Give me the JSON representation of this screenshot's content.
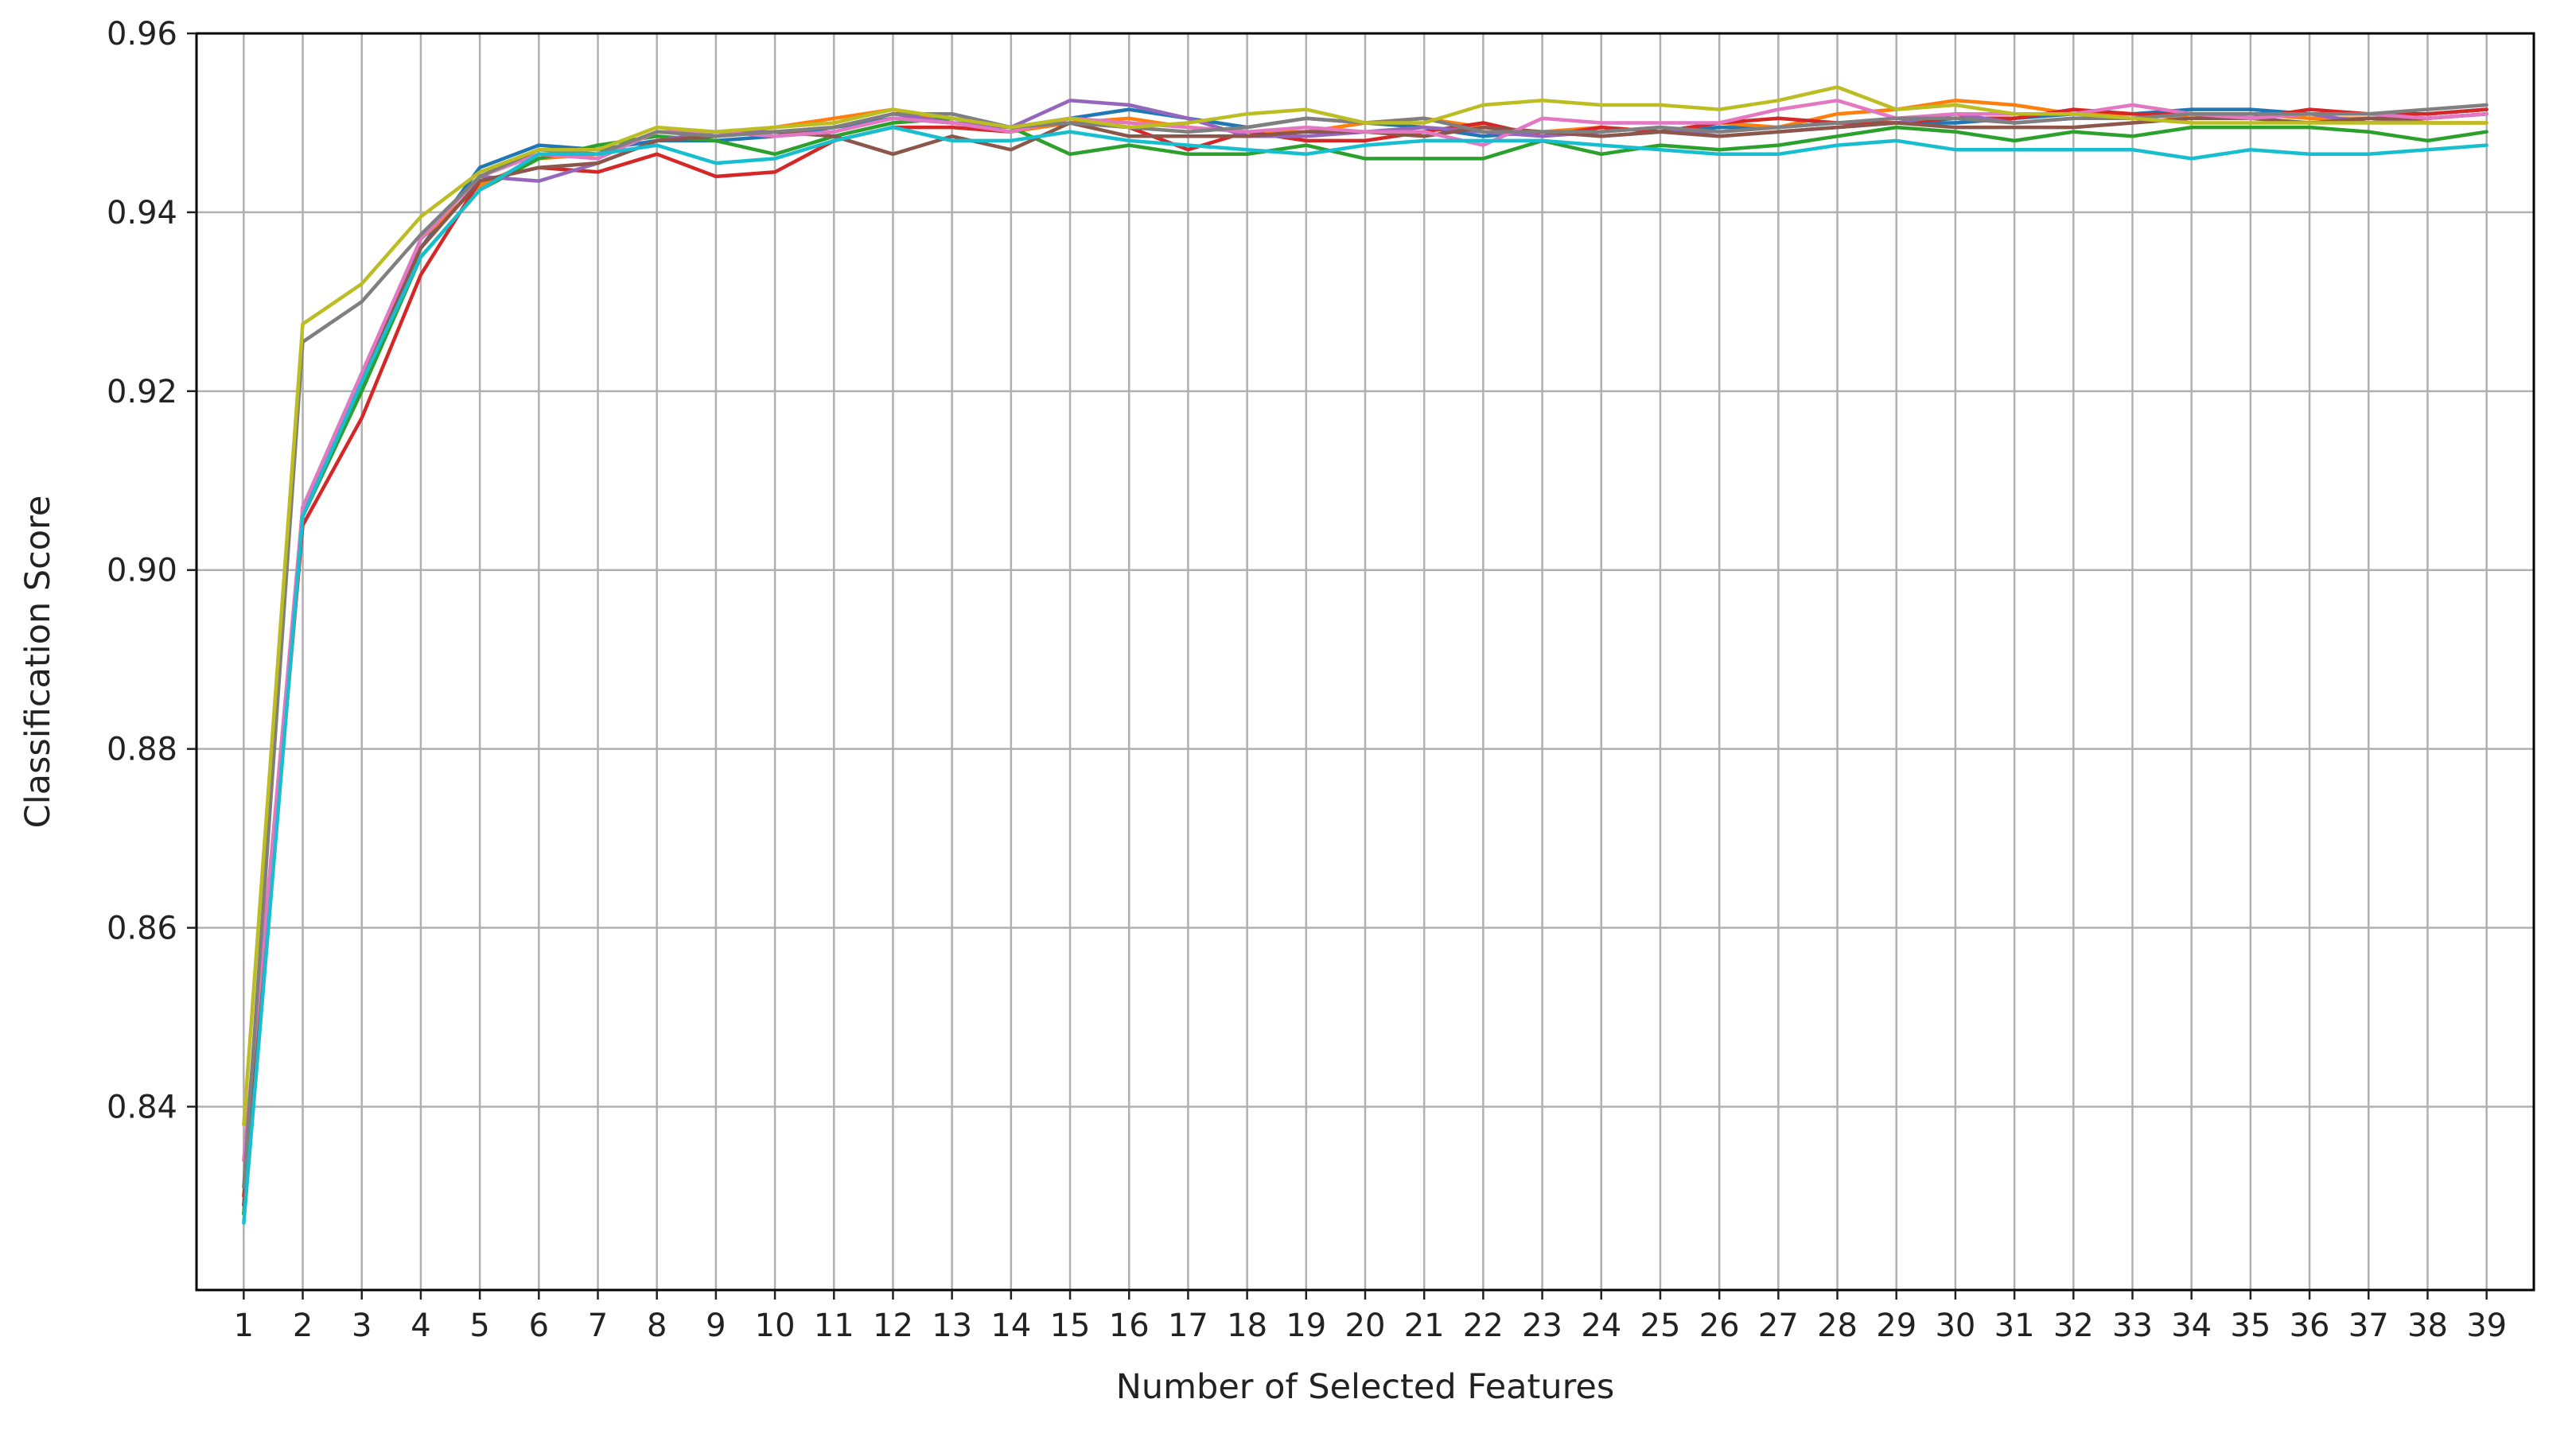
{
  "chart_data": {
    "type": "line",
    "title": "",
    "xlabel": "Number of Selected Features",
    "ylabel": "Classification Score",
    "x": [
      1,
      2,
      3,
      4,
      5,
      6,
      7,
      8,
      9,
      10,
      11,
      12,
      13,
      14,
      15,
      16,
      17,
      18,
      19,
      20,
      21,
      22,
      23,
      24,
      25,
      26,
      27,
      28,
      29,
      30,
      31,
      32,
      33,
      34,
      35,
      36,
      37,
      38,
      39
    ],
    "xlim": [
      0.2,
      39.8
    ],
    "ylim": [
      0.8195,
      0.96
    ],
    "yticks": [
      0.84,
      0.86,
      0.88,
      0.9,
      0.92,
      0.94,
      0.96
    ],
    "ytick_labels": [
      "0.84",
      "0.86",
      "0.88",
      "0.90",
      "0.92",
      "0.94",
      "0.96"
    ],
    "grid": true,
    "legend": false,
    "series": [
      {
        "color": "#1f77b4",
        "values": [
          0.828,
          0.907,
          0.922,
          0.936,
          0.945,
          0.9475,
          0.947,
          0.948,
          0.948,
          0.9485,
          0.9495,
          0.9505,
          0.95,
          0.9495,
          0.9505,
          0.9515,
          0.9505,
          0.9495,
          0.9505,
          0.95,
          0.9495,
          0.9485,
          0.949,
          0.9485,
          0.949,
          0.9495,
          0.9495,
          0.95,
          0.95,
          0.95,
          0.9505,
          0.951,
          0.951,
          0.9515,
          0.9515,
          0.951,
          0.951,
          0.951,
          0.9515
        ]
      },
      {
        "color": "#ff7f0e",
        "values": [
          0.829,
          0.906,
          0.921,
          0.937,
          0.943,
          0.946,
          0.9465,
          0.949,
          0.949,
          0.9495,
          0.9505,
          0.9515,
          0.95,
          0.949,
          0.95,
          0.9505,
          0.9495,
          0.949,
          0.949,
          0.95,
          0.9505,
          0.9495,
          0.949,
          0.9495,
          0.949,
          0.95,
          0.9495,
          0.951,
          0.9515,
          0.9525,
          0.952,
          0.951,
          0.951,
          0.9505,
          0.951,
          0.9505,
          0.9505,
          0.95,
          0.95
        ]
      },
      {
        "color": "#2ca02c",
        "values": [
          0.828,
          0.906,
          0.92,
          0.935,
          0.9425,
          0.946,
          0.9475,
          0.9485,
          0.948,
          0.9465,
          0.9485,
          0.95,
          0.9505,
          0.9495,
          0.9465,
          0.9475,
          0.9465,
          0.9465,
          0.9475,
          0.946,
          0.946,
          0.946,
          0.948,
          0.9465,
          0.9475,
          0.947,
          0.9475,
          0.9485,
          0.9495,
          0.949,
          0.948,
          0.949,
          0.9485,
          0.9495,
          0.9495,
          0.9495,
          0.949,
          0.948,
          0.949
        ]
      },
      {
        "color": "#d62728",
        "values": [
          0.83,
          0.905,
          0.917,
          0.933,
          0.9435,
          0.945,
          0.9445,
          0.9465,
          0.944,
          0.9445,
          0.948,
          0.9495,
          0.9495,
          0.949,
          0.9505,
          0.9495,
          0.947,
          0.949,
          0.948,
          0.948,
          0.949,
          0.95,
          0.9485,
          0.9495,
          0.949,
          0.95,
          0.9505,
          0.95,
          0.95,
          0.9505,
          0.9505,
          0.9515,
          0.951,
          0.951,
          0.9505,
          0.9515,
          0.951,
          0.951,
          0.9515
        ]
      },
      {
        "color": "#9467bd",
        "values": [
          0.829,
          0.907,
          0.921,
          0.937,
          0.944,
          0.9435,
          0.9455,
          0.948,
          0.949,
          0.949,
          0.9495,
          0.951,
          0.95,
          0.9495,
          0.9525,
          0.952,
          0.9505,
          0.9485,
          0.9485,
          0.949,
          0.9495,
          0.949,
          0.9485,
          0.949,
          0.9495,
          0.9485,
          0.949,
          0.9495,
          0.95,
          0.951,
          0.95,
          0.9505,
          0.9505,
          0.951,
          0.9505,
          0.951,
          0.95,
          0.9505,
          0.951
        ]
      },
      {
        "color": "#8c564b",
        "values": [
          0.829,
          0.906,
          0.921,
          0.936,
          0.9435,
          0.945,
          0.9455,
          0.948,
          0.9485,
          0.949,
          0.9485,
          0.9465,
          0.9485,
          0.947,
          0.95,
          0.9485,
          0.9485,
          0.9485,
          0.949,
          0.949,
          0.9485,
          0.9495,
          0.949,
          0.9485,
          0.949,
          0.9485,
          0.949,
          0.9495,
          0.95,
          0.9495,
          0.9495,
          0.9495,
          0.95,
          0.9505,
          0.9505,
          0.95,
          0.9505,
          0.9505,
          0.951
        ]
      },
      {
        "color": "#e377c2",
        "values": [
          0.834,
          0.907,
          0.922,
          0.937,
          0.944,
          0.9465,
          0.946,
          0.949,
          0.949,
          0.9485,
          0.949,
          0.9505,
          0.95,
          0.949,
          0.9505,
          0.95,
          0.9495,
          0.949,
          0.9495,
          0.949,
          0.949,
          0.9475,
          0.9505,
          0.95,
          0.95,
          0.95,
          0.9515,
          0.9525,
          0.9505,
          0.951,
          0.951,
          0.951,
          0.952,
          0.951,
          0.9505,
          0.951,
          0.951,
          0.9505,
          0.951
        ]
      },
      {
        "color": "#7f7f7f",
        "values": [
          0.831,
          0.9255,
          0.93,
          0.9375,
          0.944,
          0.947,
          0.9465,
          0.949,
          0.9485,
          0.949,
          0.9495,
          0.951,
          0.951,
          0.9495,
          0.95,
          0.9495,
          0.949,
          0.9495,
          0.9505,
          0.95,
          0.9505,
          0.949,
          0.949,
          0.949,
          0.9495,
          0.949,
          0.9495,
          0.95,
          0.9505,
          0.9505,
          0.95,
          0.9505,
          0.9505,
          0.951,
          0.951,
          0.951,
          0.951,
          0.9515,
          0.952
        ]
      },
      {
        "color": "#bcbd22",
        "values": [
          0.838,
          0.9275,
          0.932,
          0.9395,
          0.9445,
          0.947,
          0.947,
          0.9495,
          0.949,
          0.9495,
          0.95,
          0.9515,
          0.9505,
          0.9495,
          0.9505,
          0.9495,
          0.95,
          0.951,
          0.9515,
          0.95,
          0.95,
          0.952,
          0.9525,
          0.952,
          0.952,
          0.9515,
          0.9525,
          0.954,
          0.9515,
          0.952,
          0.951,
          0.951,
          0.9505,
          0.95,
          0.95,
          0.95,
          0.95,
          0.95,
          0.95
        ]
      },
      {
        "color": "#17becf",
        "values": [
          0.827,
          0.906,
          0.921,
          0.935,
          0.9425,
          0.9465,
          0.9465,
          0.9475,
          0.9455,
          0.946,
          0.948,
          0.9495,
          0.948,
          0.948,
          0.949,
          0.948,
          0.9475,
          0.947,
          0.9465,
          0.9475,
          0.948,
          0.948,
          0.948,
          0.9475,
          0.947,
          0.9465,
          0.9465,
          0.9475,
          0.948,
          0.947,
          0.947,
          0.947,
          0.947,
          0.946,
          0.947,
          0.9465,
          0.9465,
          0.947,
          0.9475
        ]
      }
    ]
  }
}
